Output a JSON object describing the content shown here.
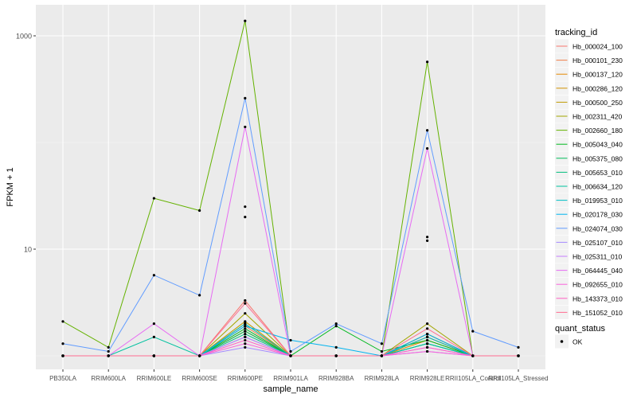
{
  "chart_data": {
    "type": "line",
    "title": "",
    "xlabel": "sample_name",
    "ylabel": "FPKM + 1",
    "y_scale": "log10",
    "y_ticks": [
      10,
      1000
    ],
    "y_tick_labels": [
      "10",
      "1000"
    ],
    "grid": true,
    "legend_position": "right",
    "categories": [
      "PB350LA",
      "RRIM600LA",
      "RRIM600LE",
      "RRIM600SE",
      "RRIM600PE",
      "RRIM901LA",
      "RRIM928BA",
      "RRIM928LA",
      "RRIM928LE",
      "RRII105LA_Control",
      "RRII105LA_Stressed"
    ],
    "legend_title": "tracking_id",
    "series": [
      {
        "name": "Hb_000024_100",
        "color": "#F8766D",
        "values": [
          1,
          1,
          1,
          1,
          3.3,
          1,
          1,
          1,
          1.6,
          1,
          1
        ]
      },
      {
        "name": "Hb_000101_230",
        "color": "#EF7F49",
        "values": [
          1,
          1,
          1,
          1,
          1.9,
          1,
          1,
          1,
          1.5,
          1,
          1
        ]
      },
      {
        "name": "Hb_000137_120",
        "color": "#E38900",
        "values": [
          1,
          1,
          1,
          1,
          1.7,
          1,
          1,
          1,
          1.4,
          1,
          1
        ]
      },
      {
        "name": "Hb_000286_120",
        "color": "#D39200",
        "values": [
          1,
          1,
          1,
          1,
          2.0,
          1,
          1,
          1,
          1.5,
          1,
          1
        ]
      },
      {
        "name": "Hb_000500_250",
        "color": "#C09B00",
        "values": [
          1,
          1,
          1,
          1,
          2.1,
          1,
          1,
          1,
          1.6,
          1,
          1
        ]
      },
      {
        "name": "Hb_002311_420",
        "color": "#A3A500",
        "values": [
          1,
          1,
          1,
          1,
          2.5,
          1,
          1,
          1,
          2.0,
          1,
          1
        ]
      },
      {
        "name": "Hb_002660_180",
        "color": "#64B200",
        "values": [
          2.1,
          1.2,
          30,
          23,
          1380,
          1,
          1,
          1,
          570,
          1,
          1
        ]
      },
      {
        "name": "Hb_005043_040",
        "color": "#00B81F",
        "values": [
          1,
          1,
          1,
          1,
          1.8,
          1,
          1.9,
          1.1,
          1.4,
          1,
          1
        ]
      },
      {
        "name": "Hb_005375_080",
        "color": "#00BC59",
        "values": [
          1,
          1,
          1,
          1,
          1.7,
          1,
          1,
          1,
          1.3,
          1,
          1
        ]
      },
      {
        "name": "Hb_005653_010",
        "color": "#00BF7D",
        "values": [
          1,
          1,
          1,
          1,
          1.6,
          1,
          1,
          1,
          1.3,
          1,
          1
        ]
      },
      {
        "name": "Hb_006634_120",
        "color": "#00C19F",
        "values": [
          1,
          1,
          1.5,
          1,
          1.5,
          1,
          1,
          1,
          1.3,
          1,
          1
        ]
      },
      {
        "name": "Hb_019953_010",
        "color": "#00BFC4",
        "values": [
          1,
          1,
          1,
          1,
          2.0,
          1,
          1,
          1,
          1.5,
          1,
          1
        ]
      },
      {
        "name": "Hb_020178_030",
        "color": "#00B4EF",
        "values": [
          1,
          1,
          1,
          1,
          1.9,
          1.4,
          1.2,
          1,
          1.6,
          1,
          1
        ]
      },
      {
        "name": "Hb_024074_030",
        "color": "#619CFF",
        "values": [
          1.3,
          1.1,
          5.7,
          3.7,
          260,
          1.1,
          2,
          1.3,
          130,
          1.7,
          1.2
        ]
      },
      {
        "name": "Hb_025107_010",
        "color": "#A58AFF",
        "values": [
          1,
          1,
          1,
          1,
          1.2,
          1,
          1,
          1,
          1.1,
          1,
          1
        ]
      },
      {
        "name": "Hb_025311_010",
        "color": "#C77CFF",
        "values": [
          1,
          1,
          1,
          1,
          1.5,
          1,
          1,
          1,
          1.2,
          1,
          1
        ]
      },
      {
        "name": "Hb_064445_040",
        "color": "#E76BF3",
        "values": [
          1,
          1,
          2.0,
          1,
          140,
          1,
          1,
          1,
          88,
          1,
          1
        ]
      },
      {
        "name": "Hb_092655_010",
        "color": "#FA62DB",
        "values": [
          1,
          1,
          1,
          1,
          1.3,
          1,
          1,
          1,
          1.1,
          1,
          1
        ]
      },
      {
        "name": "Hb_143373_010",
        "color": "#FF61C3",
        "values": [
          1,
          1,
          1,
          1,
          1.4,
          1,
          1,
          1,
          1.2,
          1,
          1
        ]
      },
      {
        "name": "Hb_151052_010",
        "color": "#FF6C91",
        "values": [
          1,
          1,
          1,
          1,
          3.1,
          1,
          1,
          1,
          1.8,
          1,
          1
        ]
      }
    ],
    "extra_points": [
      {
        "category": "RRIM600PE",
        "value": 25
      },
      {
        "category": "RRIM600PE",
        "value": 20
      },
      {
        "category": "RRIM928LE",
        "value": 13
      },
      {
        "category": "RRIM928LE",
        "value": 12
      }
    ],
    "shape_legend_title": "quant_status",
    "shape_legend_items": [
      "OK"
    ]
  }
}
